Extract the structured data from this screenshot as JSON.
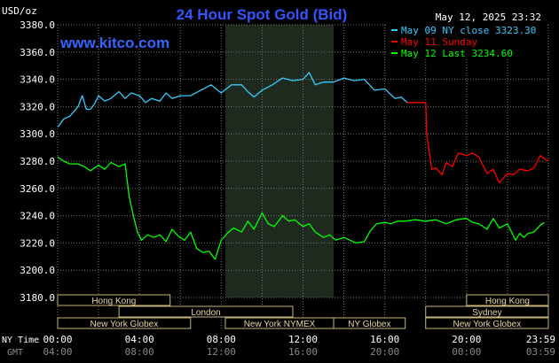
{
  "header": {
    "title": "24 Hour Spot Gold (Bid)",
    "timestamp": "May 12, 2025 23:32",
    "unit_label": "USD/oz",
    "website": "www.kitco.com"
  },
  "legend": [
    {
      "text": "May 09 NY close 3323.30",
      "color": "#33ccff"
    },
    {
      "text": "May 11 Sunday",
      "color": "#ff0000"
    },
    {
      "text": "May 12 Last 3234.60",
      "color": "#00ff00"
    }
  ],
  "colors": {
    "background": "#000000",
    "grid": "#777777",
    "axis_text": "#ffffff",
    "title": "#3355ff",
    "shade": "#1e2a1e",
    "session_bar_fill": "#000000",
    "session_bar_border": "#c8b478",
    "session_bar_text": "#e8d8a0"
  },
  "axes": {
    "row1_label": "NY Time",
    "row2_label": "GMT",
    "x_ticks": [
      {
        "t": 0,
        "ny": "00:00",
        "gmt": "04:00"
      },
      {
        "t": 4,
        "ny": "04:00",
        "gmt": "08:00"
      },
      {
        "t": 8,
        "ny": "08:00",
        "gmt": "12:00"
      },
      {
        "t": 12,
        "ny": "12:00",
        "gmt": "16:00"
      },
      {
        "t": 16,
        "ny": "16:00",
        "gmt": "20:00"
      },
      {
        "t": 20,
        "ny": "20:00",
        "gmt": "00:00"
      },
      {
        "t": 24,
        "ny": "23:59",
        "gmt": "03:59"
      }
    ],
    "y_ticks": [
      "3380.0",
      "3360.0",
      "3340.0",
      "3320.0",
      "3300.0",
      "3280.0",
      "3260.0",
      "3240.0",
      "3220.0",
      "3200.0",
      "3180.0"
    ]
  },
  "sessions": [
    {
      "label": "Hong Kong",
      "start": 0,
      "end": 5.5,
      "row": 0
    },
    {
      "label": "London",
      "start": 3,
      "end": 11.5,
      "row": 1
    },
    {
      "label": "New York Globex",
      "start": 0,
      "end": 6.5,
      "row": 2
    },
    {
      "label": "New York NYMEX",
      "start": 8.2,
      "end": 13.5,
      "row": 2
    },
    {
      "label": "NY Globex",
      "start": 13.5,
      "end": 17.0,
      "row": 2
    },
    {
      "label": "Hong Kong",
      "start": 20.0,
      "end": 24.0,
      "row": 0
    },
    {
      "label": "Sydney",
      "start": 18.0,
      "end": 24.0,
      "row": 1
    },
    {
      "label": "New York Globex",
      "start": 18.0,
      "end": 24.0,
      "row": 2
    }
  ],
  "chart_data": {
    "type": "line",
    "title": "24 Hour Spot Gold (Bid)",
    "ylabel": "USD/oz",
    "xlabel": "NY Time / GMT",
    "xlim": [
      0,
      24
    ],
    "ylim": [
      3180,
      3380
    ],
    "grid": true,
    "legend_position": "top-right",
    "shaded_region": [
      8.2,
      13.5
    ],
    "series": [
      {
        "name": "May 09 NY close 3323.30",
        "color": "#33ccff",
        "x": [
          0,
          0.3,
          0.6,
          1.0,
          1.2,
          1.4,
          1.6,
          1.8,
          2.0,
          2.3,
          2.6,
          3.0,
          3.3,
          3.6,
          4.0,
          4.3,
          4.6,
          5.0,
          5.3,
          5.6,
          6.0,
          6.5,
          7.0,
          7.5,
          8.0,
          8.5,
          9.0,
          9.3,
          9.6,
          10.0,
          10.5,
          11.0,
          11.5,
          12.0,
          12.3,
          12.6,
          13.0,
          13.5,
          14.0,
          14.5,
          15.0,
          15.5,
          16.0,
          16.5,
          16.8,
          17.1
        ],
        "y": [
          3305,
          3311,
          3313,
          3320,
          3328,
          3318,
          3318,
          3322,
          3328,
          3324,
          3326,
          3331,
          3326,
          3330,
          3328,
          3323,
          3326,
          3324,
          3330,
          3326,
          3328,
          3328,
          3332,
          3336,
          3330,
          3336,
          3336,
          3331,
          3327,
          3332,
          3336,
          3341,
          3339,
          3340,
          3345,
          3336,
          3338,
          3338,
          3341,
          3339,
          3340,
          3332,
          3333,
          3326,
          3327,
          3323
        ]
      },
      {
        "name": "May 11 Sunday",
        "color": "#ff0000",
        "x": [
          17.1,
          17.5,
          18.0,
          18.05,
          18.15,
          18.3,
          18.5,
          18.8,
          19.0,
          19.3,
          19.6,
          20.0,
          20.3,
          20.6,
          21.0,
          21.3,
          21.6,
          22.0,
          22.3,
          22.6,
          23.0,
          23.3,
          23.6,
          24.0
        ],
        "y": [
          3323,
          3323,
          3323,
          3300,
          3289,
          3274,
          3275,
          3270,
          3279,
          3276,
          3286,
          3284,
          3286,
          3283,
          3271,
          3274,
          3264,
          3271,
          3270,
          3274,
          3273,
          3275,
          3284,
          3280
        ]
      },
      {
        "name": "May 12 Last 3234.60",
        "color": "#00ff00",
        "x": [
          0,
          0.3,
          0.6,
          1.0,
          1.3,
          1.6,
          2.0,
          2.3,
          2.6,
          3.0,
          3.3,
          3.5,
          3.7,
          3.9,
          4.1,
          4.4,
          4.7,
          5.0,
          5.3,
          5.6,
          5.9,
          6.2,
          6.5,
          6.8,
          7.1,
          7.4,
          7.7,
          8.0,
          8.3,
          8.6,
          9.0,
          9.3,
          9.6,
          10.0,
          10.3,
          10.6,
          11.0,
          11.3,
          11.6,
          12.0,
          12.3,
          12.6,
          13.0,
          13.3,
          13.6,
          14.0,
          14.3,
          14.6,
          15.0,
          15.3,
          15.6,
          16.0,
          16.3,
          16.6,
          17.0,
          17.5,
          18.0,
          18.5,
          19.0,
          19.5,
          20.0,
          20.3,
          20.6,
          21.0,
          21.3,
          21.6,
          22.0,
          22.2,
          22.4,
          22.6,
          22.8,
          23.0,
          23.3,
          23.6,
          23.8
        ],
        "y": [
          3283,
          3280,
          3278,
          3278,
          3276,
          3273,
          3277,
          3274,
          3279,
          3276,
          3278,
          3254,
          3240,
          3228,
          3222,
          3226,
          3224,
          3226,
          3221,
          3230,
          3225,
          3222,
          3228,
          3216,
          3213,
          3214,
          3208,
          3222,
          3227,
          3231,
          3228,
          3236,
          3230,
          3242,
          3234,
          3232,
          3240,
          3236,
          3237,
          3232,
          3234,
          3228,
          3224,
          3226,
          3222,
          3224,
          3222,
          3220,
          3221,
          3229,
          3234,
          3235,
          3234,
          3236,
          3236,
          3237,
          3236,
          3237,
          3234,
          3237,
          3238,
          3235,
          3234,
          3230,
          3238,
          3231,
          3234,
          3228,
          3222,
          3227,
          3224,
          3227,
          3228,
          3233,
          3235
        ]
      }
    ]
  }
}
